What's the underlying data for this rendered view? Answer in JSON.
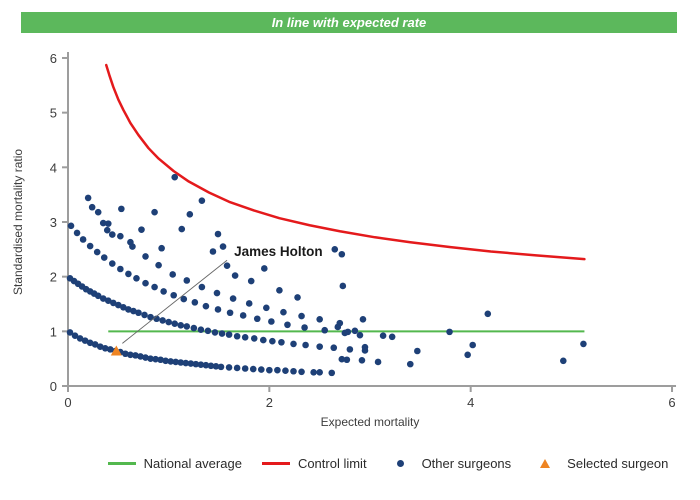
{
  "banner": {
    "text": "In line with expected rate",
    "bg_color": "#5cb85c"
  },
  "colors": {
    "national_average": "#53b84e",
    "control_limit": "#e41a1c",
    "other_surgeons": "#1e4077",
    "selected_surgeon": "#ee8422",
    "axis": "#9d9d9d",
    "axis_text": "#3d3d3d",
    "annotation_line": "#666666"
  },
  "chart_data": {
    "type": "scatter",
    "title": "",
    "xlabel": "Expected mortality",
    "ylabel": "Standardised mortality ratio",
    "xlim": [
      0,
      6
    ],
    "ylim": [
      0,
      6
    ],
    "x_ticks": [
      0,
      2,
      4,
      6
    ],
    "y_ticks": [
      0,
      1,
      2,
      3,
      4,
      5,
      6
    ],
    "grid": false,
    "legend_position": "bottom",
    "national_average": {
      "label": "National average",
      "y": 1.0,
      "x_start": 0.4,
      "x_end": 5.13
    },
    "control_limit": {
      "label": "Control limit",
      "formula": "SMR = 1 + 3/sqrt(expected mortality)",
      "points": [
        [
          0.38,
          5.87
        ],
        [
          0.41,
          5.69
        ],
        [
          0.45,
          5.47
        ],
        [
          0.5,
          5.24
        ],
        [
          0.55,
          5.05
        ],
        [
          0.62,
          4.81
        ],
        [
          0.7,
          4.59
        ],
        [
          0.8,
          4.35
        ],
        [
          0.9,
          4.16
        ],
        [
          1.05,
          3.93
        ],
        [
          1.2,
          3.74
        ],
        [
          1.4,
          3.54
        ],
        [
          1.6,
          3.37
        ],
        [
          1.85,
          3.21
        ],
        [
          2.1,
          3.07
        ],
        [
          2.4,
          2.94
        ],
        [
          2.7,
          2.83
        ],
        [
          3.05,
          2.72
        ],
        [
          3.4,
          2.63
        ],
        [
          3.8,
          2.54
        ],
        [
          4.2,
          2.46
        ],
        [
          4.65,
          2.39
        ],
        [
          5.13,
          2.32
        ]
      ]
    },
    "other_surgeons": {
      "label": "Other surgeons",
      "points": [
        [
          0.02,
          0.98
        ],
        [
          0.07,
          0.92
        ],
        [
          0.12,
          0.87
        ],
        [
          0.17,
          0.83
        ],
        [
          0.22,
          0.79
        ],
        [
          0.27,
          0.76
        ],
        [
          0.32,
          0.72
        ],
        [
          0.37,
          0.69
        ],
        [
          0.42,
          0.67
        ],
        [
          0.47,
          0.64
        ],
        [
          0.52,
          0.62
        ],
        [
          0.57,
          0.59
        ],
        [
          0.62,
          0.57
        ],
        [
          0.67,
          0.56
        ],
        [
          0.72,
          0.54
        ],
        [
          0.77,
          0.52
        ],
        [
          0.82,
          0.5
        ],
        [
          0.87,
          0.49
        ],
        [
          0.92,
          0.48
        ],
        [
          0.97,
          0.46
        ],
        [
          1.02,
          0.45
        ],
        [
          1.07,
          0.44
        ],
        [
          1.12,
          0.43
        ],
        [
          1.17,
          0.42
        ],
        [
          1.22,
          0.41
        ],
        [
          1.27,
          0.4
        ],
        [
          1.32,
          0.39
        ],
        [
          1.37,
          0.38
        ],
        [
          1.42,
          0.37
        ],
        [
          1.47,
          0.36
        ],
        [
          1.52,
          0.35
        ],
        [
          1.6,
          0.34
        ],
        [
          1.68,
          0.33
        ],
        [
          1.76,
          0.32
        ],
        [
          1.84,
          0.31
        ],
        [
          1.92,
          0.3
        ],
        [
          2.0,
          0.29
        ],
        [
          2.08,
          0.29
        ],
        [
          2.16,
          0.28
        ],
        [
          2.24,
          0.27
        ],
        [
          2.32,
          0.26
        ],
        [
          2.44,
          0.25
        ],
        [
          2.5,
          0.25
        ],
        [
          2.62,
          0.24
        ],
        [
          0.02,
          1.97
        ],
        [
          0.06,
          1.92
        ],
        [
          0.1,
          1.87
        ],
        [
          0.14,
          1.82
        ],
        [
          0.18,
          1.77
        ],
        [
          0.22,
          1.73
        ],
        [
          0.26,
          1.69
        ],
        [
          0.3,
          1.65
        ],
        [
          0.35,
          1.6
        ],
        [
          0.4,
          1.56
        ],
        [
          0.45,
          1.52
        ],
        [
          0.5,
          1.48
        ],
        [
          0.55,
          1.44
        ],
        [
          0.6,
          1.4
        ],
        [
          0.65,
          1.37
        ],
        [
          0.7,
          1.34
        ],
        [
          0.76,
          1.3
        ],
        [
          0.82,
          1.26
        ],
        [
          0.88,
          1.23
        ],
        [
          0.94,
          1.2
        ],
        [
          1.0,
          1.17
        ],
        [
          1.06,
          1.14
        ],
        [
          1.12,
          1.11
        ],
        [
          1.18,
          1.09
        ],
        [
          1.25,
          1.06
        ],
        [
          1.32,
          1.03
        ],
        [
          1.39,
          1.01
        ],
        [
          1.46,
          0.98
        ],
        [
          1.53,
          0.96
        ],
        [
          1.6,
          0.94
        ],
        [
          1.68,
          0.91
        ],
        [
          1.76,
          0.89
        ],
        [
          1.85,
          0.87
        ],
        [
          1.94,
          0.84
        ],
        [
          2.03,
          0.82
        ],
        [
          2.12,
          0.8
        ],
        [
          2.24,
          0.77
        ],
        [
          2.36,
          0.75
        ],
        [
          2.5,
          0.72
        ],
        [
          2.64,
          0.7
        ],
        [
          2.8,
          0.67
        ],
        [
          2.95,
          0.65
        ],
        [
          0.03,
          2.93
        ],
        [
          0.09,
          2.8
        ],
        [
          0.15,
          2.68
        ],
        [
          0.22,
          2.56
        ],
        [
          0.29,
          2.45
        ],
        [
          0.36,
          2.35
        ],
        [
          0.44,
          2.24
        ],
        [
          0.52,
          2.14
        ],
        [
          0.6,
          2.05
        ],
        [
          0.68,
          1.97
        ],
        [
          0.77,
          1.88
        ],
        [
          0.86,
          1.81
        ],
        [
          0.95,
          1.73
        ],
        [
          1.05,
          1.66
        ],
        [
          1.15,
          1.59
        ],
        [
          1.26,
          1.53
        ],
        [
          1.37,
          1.46
        ],
        [
          1.49,
          1.4
        ],
        [
          1.61,
          1.34
        ],
        [
          1.74,
          1.29
        ],
        [
          1.88,
          1.23
        ],
        [
          2.02,
          1.18
        ],
        [
          2.18,
          1.12
        ],
        [
          2.35,
          1.07
        ],
        [
          2.55,
          1.02
        ],
        [
          2.75,
          0.97
        ],
        [
          2.9,
          0.93
        ],
        [
          0.2,
          3.44
        ],
        [
          0.3,
          3.18
        ],
        [
          0.4,
          2.97
        ],
        [
          0.52,
          2.74
        ],
        [
          0.64,
          2.55
        ],
        [
          0.77,
          2.37
        ],
        [
          0.9,
          2.21
        ],
        [
          1.04,
          2.04
        ],
        [
          1.18,
          1.93
        ],
        [
          1.33,
          1.81
        ],
        [
          1.48,
          1.7
        ],
        [
          1.64,
          1.6
        ],
        [
          1.8,
          1.51
        ],
        [
          1.97,
          1.43
        ],
        [
          2.14,
          1.35
        ],
        [
          2.32,
          1.28
        ],
        [
          2.5,
          1.22
        ],
        [
          2.7,
          1.15
        ],
        [
          0.24,
          3.27
        ],
        [
          0.35,
          2.98
        ],
        [
          0.39,
          2.85
        ],
        [
          0.44,
          2.77
        ],
        [
          0.53,
          3.24
        ],
        [
          0.62,
          2.63
        ],
        [
          0.73,
          2.86
        ],
        [
          0.86,
          3.18
        ],
        [
          0.93,
          2.52
        ],
        [
          1.06,
          3.82
        ],
        [
          1.13,
          2.87
        ],
        [
          1.21,
          3.14
        ],
        [
          1.33,
          3.39
        ],
        [
          1.44,
          2.46
        ],
        [
          1.49,
          2.78
        ],
        [
          1.54,
          2.55
        ],
        [
          1.58,
          2.2
        ],
        [
          1.66,
          2.02
        ],
        [
          1.82,
          1.92
        ],
        [
          1.95,
          2.15
        ],
        [
          2.1,
          1.75
        ],
        [
          2.28,
          1.62
        ],
        [
          2.65,
          2.5
        ],
        [
          2.72,
          2.41
        ],
        [
          2.73,
          1.83
        ],
        [
          2.68,
          1.08
        ],
        [
          2.93,
          1.22
        ],
        [
          2.78,
          0.99
        ],
        [
          2.85,
          1.01
        ],
        [
          3.13,
          0.92
        ],
        [
          3.22,
          0.9
        ],
        [
          2.95,
          0.71
        ],
        [
          2.72,
          0.49
        ],
        [
          2.77,
          0.48
        ],
        [
          2.92,
          0.47
        ],
        [
          3.08,
          0.44
        ],
        [
          3.4,
          0.4
        ],
        [
          3.47,
          0.64
        ],
        [
          3.79,
          0.99
        ],
        [
          3.97,
          0.57
        ],
        [
          4.02,
          0.75
        ],
        [
          4.17,
          1.32
        ],
        [
          4.92,
          0.46
        ],
        [
          5.12,
          0.77
        ]
      ]
    },
    "selected_surgeon": {
      "label": "Selected surgeon",
      "name": "James Holton",
      "point": [
        0.48,
        0.64
      ],
      "callout_from": [
        0.54,
        0.78
      ],
      "callout_to": [
        1.58,
        2.3
      ],
      "label_pos": [
        1.65,
        2.38
      ]
    }
  },
  "legend": {
    "items": [
      {
        "label": "National average",
        "marker": "line",
        "color": "#53b84e"
      },
      {
        "label": "Control limit",
        "marker": "line",
        "color": "#e41a1c"
      },
      {
        "label": "Other surgeons",
        "marker": "dot",
        "color": "#1e4077"
      },
      {
        "label": "Selected surgeon",
        "marker": "triangle",
        "color": "#ee8422"
      }
    ]
  }
}
